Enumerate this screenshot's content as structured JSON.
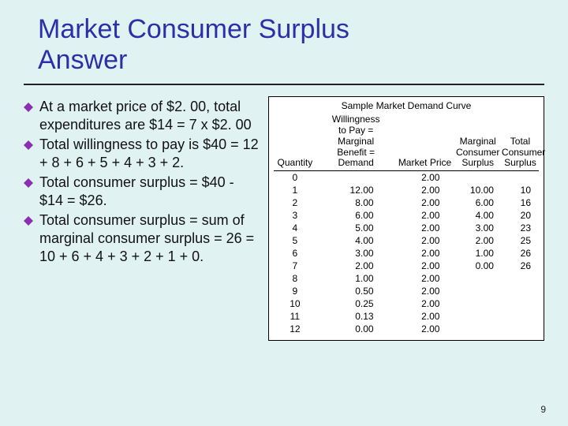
{
  "title_line1": "Market Consumer Surplus",
  "title_line2": "Answer",
  "bullets": [
    "At a market price of $2. 00, total expenditures are $14 = 7 x $2. 00",
    "Total willingness to pay is $40 =  12 + 8 + 6 + 5 + 4 + 3 + 2.",
    "Total consumer surplus = $40 - $14 = $26.",
    "Total consumer surplus = sum of marginal consumer surplus = 26 = 10 + 6 + 4 + 3 + 2 + 1 + 0."
  ],
  "table_title": "Sample Market Demand Curve",
  "headers": {
    "q": "Quantity",
    "wtp_l1": "Willingness",
    "wtp_l2": "to Pay =",
    "wtp_l3": "Marginal",
    "wtp_l4": "Benefit =",
    "wtp_l5": "Demand",
    "mp": "Market Price",
    "mcs_l1": "Marginal",
    "mcs_l2": "Consumer",
    "mcs_l3": "Surplus",
    "tcs_l1": "Total",
    "tcs_l2": "Consumer",
    "tcs_l3": "Surplus"
  },
  "rows": [
    {
      "q": "0",
      "wtp": "",
      "mp": "2.00",
      "mcs": "",
      "tcs": ""
    },
    {
      "q": "1",
      "wtp": "12.00",
      "mp": "2.00",
      "mcs": "10.00",
      "tcs": "10"
    },
    {
      "q": "2",
      "wtp": "8.00",
      "mp": "2.00",
      "mcs": "6.00",
      "tcs": "16"
    },
    {
      "q": "3",
      "wtp": "6.00",
      "mp": "2.00",
      "mcs": "4.00",
      "tcs": "20"
    },
    {
      "q": "4",
      "wtp": "5.00",
      "mp": "2.00",
      "mcs": "3.00",
      "tcs": "23"
    },
    {
      "q": "5",
      "wtp": "4.00",
      "mp": "2.00",
      "mcs": "2.00",
      "tcs": "25"
    },
    {
      "q": "6",
      "wtp": "3.00",
      "mp": "2.00",
      "mcs": "1.00",
      "tcs": "26"
    },
    {
      "q": "7",
      "wtp": "2.00",
      "mp": "2.00",
      "mcs": "0.00",
      "tcs": "26"
    },
    {
      "q": "8",
      "wtp": "1.00",
      "mp": "2.00",
      "mcs": "",
      "tcs": ""
    },
    {
      "q": "9",
      "wtp": "0.50",
      "mp": "2.00",
      "mcs": "",
      "tcs": ""
    },
    {
      "q": "10",
      "wtp": "0.25",
      "mp": "2.00",
      "mcs": "",
      "tcs": ""
    },
    {
      "q": "11",
      "wtp": "0.13",
      "mp": "2.00",
      "mcs": "",
      "tcs": ""
    },
    {
      "q": "12",
      "wtp": "0.00",
      "mp": "2.00",
      "mcs": "",
      "tcs": ""
    }
  ],
  "page_number": "9",
  "colors": {
    "title": "#2c2fa8",
    "bullet": "#8b2fb0",
    "background": "#e0f2f2",
    "table_bg": "#ffffff",
    "rule": "#000000"
  }
}
